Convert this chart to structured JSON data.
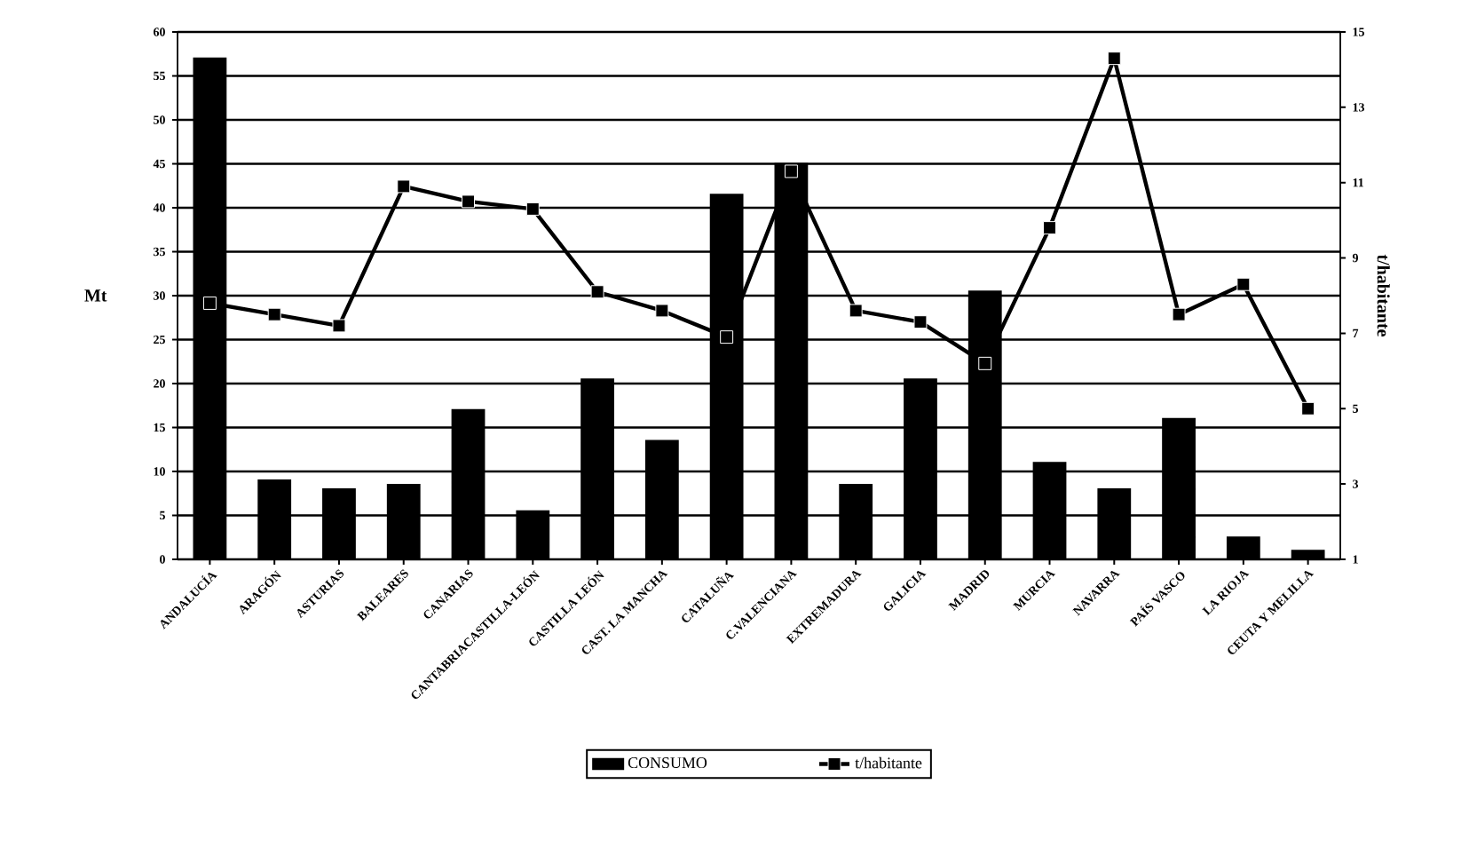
{
  "chart_data": {
    "type": "bar",
    "ylabel": "Mt",
    "y2label": "t/habitante",
    "categories": [
      "ANDALUCÍA",
      "ARAGÓN",
      "ASTURIAS",
      "BALEARES",
      "CANARIAS",
      "CANTABRIACASTILLA-LEÓN",
      "CASTILLA LEÓN",
      "CAST. LA MANCHA",
      "CATALUÑA",
      "C.VALENCIANA",
      "EXTREMADURA",
      "GALICIA",
      "MADRID",
      "MURCIA",
      "NAVARRA",
      "PAÍS VASCO",
      "LA RIOJA",
      "CEUTA Y MELILLA"
    ],
    "series": [
      {
        "name": "CONSUMO",
        "color": "#000000",
        "values": [
          57,
          9,
          8,
          8.5,
          17,
          5.5,
          20.5,
          13.5,
          41.5,
          45,
          8.5,
          20.5,
          30.5,
          11,
          8,
          16,
          2.5,
          1
        ]
      },
      {
        "name": "t/habitante",
        "type": "line",
        "axis": "y2",
        "color": "#000000",
        "values": [
          7.8,
          7.5,
          7.2,
          10.9,
          10.5,
          10.3,
          8.1,
          7.6,
          6.9,
          11.3,
          7.6,
          7.3,
          6.2,
          9.8,
          14.3,
          7.5,
          8.3,
          5.0
        ]
      }
    ],
    "ylim": [
      0,
      60
    ],
    "yticks": [
      0,
      5,
      10,
      15,
      20,
      25,
      30,
      35,
      40,
      45,
      50,
      55,
      60
    ],
    "y2lim": [
      1,
      15
    ],
    "y2ticks": [
      1,
      3,
      5,
      7,
      9,
      11,
      13,
      15
    ],
    "grid": "y",
    "legend": "bottom",
    "marker": "square",
    "line_style": "solid"
  }
}
